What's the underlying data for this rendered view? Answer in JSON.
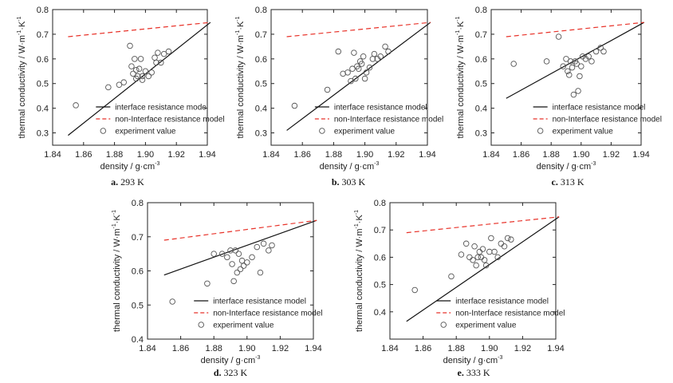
{
  "figure": {
    "common": {
      "xlabel": "density / g·cm",
      "xlabel_sup": "-3",
      "ylabel": "thermal conductivity / W·m",
      "ylabel_sup1": "-1",
      "ylabel_mid": "·K",
      "ylabel_sup2": "-1",
      "legend": {
        "line1": "interface resistance model",
        "line2": "non-Interface resistance model",
        "scatter": "experiment value"
      },
      "colors": {
        "model": "#111111",
        "non_model": "#e8332a",
        "points": "#555555"
      }
    }
  },
  "chart_data": [
    {
      "type": "scatter",
      "caption_letter": "a.",
      "caption_temp": "293 K",
      "xlim": [
        1.84,
        1.94
      ],
      "ylim": [
        0.25,
        0.8
      ],
      "xticks": [
        "1.84",
        "1.86",
        "1.88",
        "1.90",
        "1.92",
        "1.94"
      ],
      "yticks": [
        "0.3",
        "0.4",
        "0.5",
        "0.6",
        "0.7",
        "0.8"
      ],
      "legend_placement": "bottom-right",
      "series": [
        {
          "kind": "line",
          "x": [
            1.85,
            1.942
          ],
          "y": [
            0.29,
            0.748
          ]
        },
        {
          "kind": "dashed",
          "x": [
            1.85,
            1.942
          ],
          "y": [
            0.69,
            0.748
          ]
        },
        {
          "kind": "points",
          "x": [
            1.855,
            1.876,
            1.883,
            1.886,
            1.89,
            1.891,
            1.892,
            1.893,
            1.894,
            1.894,
            1.895,
            1.896,
            1.897,
            1.898,
            1.898,
            1.9,
            1.902,
            1.904,
            1.906,
            1.907,
            1.908,
            1.91,
            1.912,
            1.915
          ],
          "y": [
            0.412,
            0.485,
            0.495,
            0.505,
            0.653,
            0.57,
            0.54,
            0.6,
            0.555,
            0.52,
            0.53,
            0.56,
            0.6,
            0.53,
            0.515,
            0.55,
            0.53,
            0.545,
            0.605,
            0.585,
            0.625,
            0.585,
            0.62,
            0.63
          ]
        }
      ]
    },
    {
      "type": "scatter",
      "caption_letter": "b.",
      "caption_temp": "303 K",
      "xlim": [
        1.84,
        1.94
      ],
      "ylim": [
        0.25,
        0.8
      ],
      "xticks": [
        "1.84",
        "1.86",
        "1.88",
        "1.90",
        "1.92",
        "1.94"
      ],
      "yticks": [
        "0.3",
        "0.4",
        "0.5",
        "0.6",
        "0.7",
        "0.8"
      ],
      "legend_placement": "bottom-right",
      "series": [
        {
          "kind": "line",
          "x": [
            1.85,
            1.942
          ],
          "y": [
            0.31,
            0.748
          ]
        },
        {
          "kind": "dashed",
          "x": [
            1.85,
            1.942
          ],
          "y": [
            0.69,
            0.748
          ]
        },
        {
          "kind": "points",
          "x": [
            1.855,
            1.876,
            1.883,
            1.886,
            1.889,
            1.891,
            1.892,
            1.893,
            1.894,
            1.895,
            1.896,
            1.897,
            1.898,
            1.899,
            1.9,
            1.901,
            1.903,
            1.905,
            1.906,
            1.908,
            1.91,
            1.913,
            1.915
          ],
          "y": [
            0.41,
            0.475,
            0.63,
            0.54,
            0.545,
            0.51,
            0.56,
            0.625,
            0.52,
            0.57,
            0.56,
            0.59,
            0.58,
            0.61,
            0.52,
            0.545,
            0.565,
            0.6,
            0.62,
            0.6,
            0.61,
            0.65,
            0.63
          ]
        }
      ]
    },
    {
      "type": "scatter",
      "caption_letter": "c.",
      "caption_temp": "313 K",
      "xlim": [
        1.84,
        1.94
      ],
      "ylim": [
        0.25,
        0.8
      ],
      "xticks": [
        "1.84",
        "1.86",
        "1.88",
        "1.90",
        "1.92",
        "1.94"
      ],
      "yticks": [
        "0.3",
        "0.4",
        "0.5",
        "0.6",
        "0.7",
        "0.8"
      ],
      "legend_placement": "bottom-right",
      "series": [
        {
          "kind": "line",
          "x": [
            1.85,
            1.942
          ],
          "y": [
            0.44,
            0.748
          ]
        },
        {
          "kind": "dashed",
          "x": [
            1.85,
            1.942
          ],
          "y": [
            0.69,
            0.748
          ]
        },
        {
          "kind": "points",
          "x": [
            1.855,
            1.877,
            1.885,
            1.888,
            1.89,
            1.891,
            1.892,
            1.893,
            1.894,
            1.895,
            1.896,
            1.897,
            1.898,
            1.899,
            1.9,
            1.901,
            1.903,
            1.905,
            1.907,
            1.91,
            1.913,
            1.915
          ],
          "y": [
            0.58,
            0.59,
            0.69,
            0.57,
            0.6,
            0.55,
            0.535,
            0.59,
            0.565,
            0.455,
            0.59,
            0.58,
            0.47,
            0.53,
            0.57,
            0.61,
            0.6,
            0.61,
            0.59,
            0.63,
            0.645,
            0.63
          ]
        }
      ]
    },
    {
      "type": "scatter",
      "caption_letter": "d.",
      "caption_temp": "323 K",
      "xlim": [
        1.84,
        1.94
      ],
      "ylim": [
        0.4,
        0.8
      ],
      "xticks": [
        "1.84",
        "1.86",
        "1.88",
        "1.90",
        "1.92",
        "1.94"
      ],
      "yticks": [
        "0.4",
        "0.5",
        "0.6",
        "0.7",
        "0.8"
      ],
      "legend_placement": "bottom-right",
      "series": [
        {
          "kind": "line",
          "x": [
            1.85,
            1.942
          ],
          "y": [
            0.588,
            0.748
          ]
        },
        {
          "kind": "dashed",
          "x": [
            1.85,
            1.942
          ],
          "y": [
            0.69,
            0.748
          ]
        },
        {
          "kind": "points",
          "x": [
            1.855,
            1.876,
            1.88,
            1.885,
            1.888,
            1.89,
            1.891,
            1.892,
            1.893,
            1.894,
            1.895,
            1.896,
            1.897,
            1.898,
            1.9,
            1.903,
            1.906,
            1.908,
            1.91,
            1.913,
            1.915
          ],
          "y": [
            0.51,
            0.563,
            0.65,
            0.65,
            0.64,
            0.66,
            0.62,
            0.57,
            0.66,
            0.595,
            0.65,
            0.605,
            0.63,
            0.615,
            0.625,
            0.64,
            0.67,
            0.595,
            0.68,
            0.66,
            0.675
          ]
        }
      ]
    },
    {
      "type": "scatter",
      "caption_letter": "e.",
      "caption_temp": "333 K",
      "xlim": [
        1.84,
        1.94
      ],
      "ylim": [
        0.3,
        0.8
      ],
      "xticks": [
        "1.84",
        "1.86",
        "1.88",
        "1.90",
        "1.92",
        "1.94"
      ],
      "yticks": [
        "0.4",
        "0.5",
        "0.6",
        "0.7",
        "0.8"
      ],
      "legend_placement": "bottom-right",
      "series": [
        {
          "kind": "line",
          "x": [
            1.85,
            1.942
          ],
          "y": [
            0.365,
            0.748
          ]
        },
        {
          "kind": "dashed",
          "x": [
            1.85,
            1.942
          ],
          "y": [
            0.69,
            0.748
          ]
        },
        {
          "kind": "points",
          "x": [
            1.855,
            1.877,
            1.883,
            1.886,
            1.888,
            1.89,
            1.891,
            1.892,
            1.893,
            1.894,
            1.895,
            1.896,
            1.897,
            1.898,
            1.9,
            1.901,
            1.903,
            1.905,
            1.907,
            1.909,
            1.911,
            1.913
          ],
          "y": [
            0.48,
            0.53,
            0.61,
            0.65,
            0.6,
            0.59,
            0.64,
            0.57,
            0.6,
            0.62,
            0.6,
            0.63,
            0.59,
            0.57,
            0.62,
            0.67,
            0.62,
            0.6,
            0.65,
            0.64,
            0.67,
            0.665
          ]
        }
      ]
    }
  ]
}
